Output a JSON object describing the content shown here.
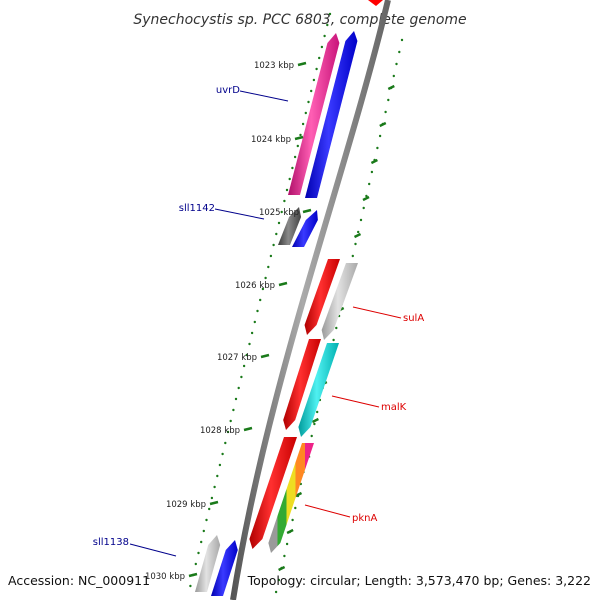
{
  "title": "Synechocystis sp. PCC 6803, complete genome",
  "footer": {
    "accession": "Accession: NC_000911",
    "topology": "Topology: circular; Length: 3,573,470 bp; Genes: 3,222"
  },
  "ticks": [
    "1023 kbp",
    "1024 kbp",
    "1025 kbp",
    "1026 kbp",
    "1027 kbp",
    "1028 kbp",
    "1029 kbp",
    "1030 kbp"
  ],
  "genes": [
    {
      "name": "uvrD",
      "color": "#00008B"
    },
    {
      "name": "sll1142",
      "color": "#00008B"
    },
    {
      "name": "sulA",
      "color": "#DD0000"
    },
    {
      "name": "malK",
      "color": "#DD0000"
    },
    {
      "name": "pknA",
      "color": "#DD0000"
    },
    {
      "name": "sll1138",
      "color": "#00008B"
    }
  ],
  "colors": {
    "backbone": "#888888",
    "tick_marks": "#1a7a1a",
    "forward_gene": "#ff0000",
    "reverse_gene": "#0000ff",
    "magenta_gene": "#ee2288",
    "cyan_gene": "#00cccc",
    "grey_gene": "#c0c0c0",
    "dark_grey_gene": "#555555"
  }
}
